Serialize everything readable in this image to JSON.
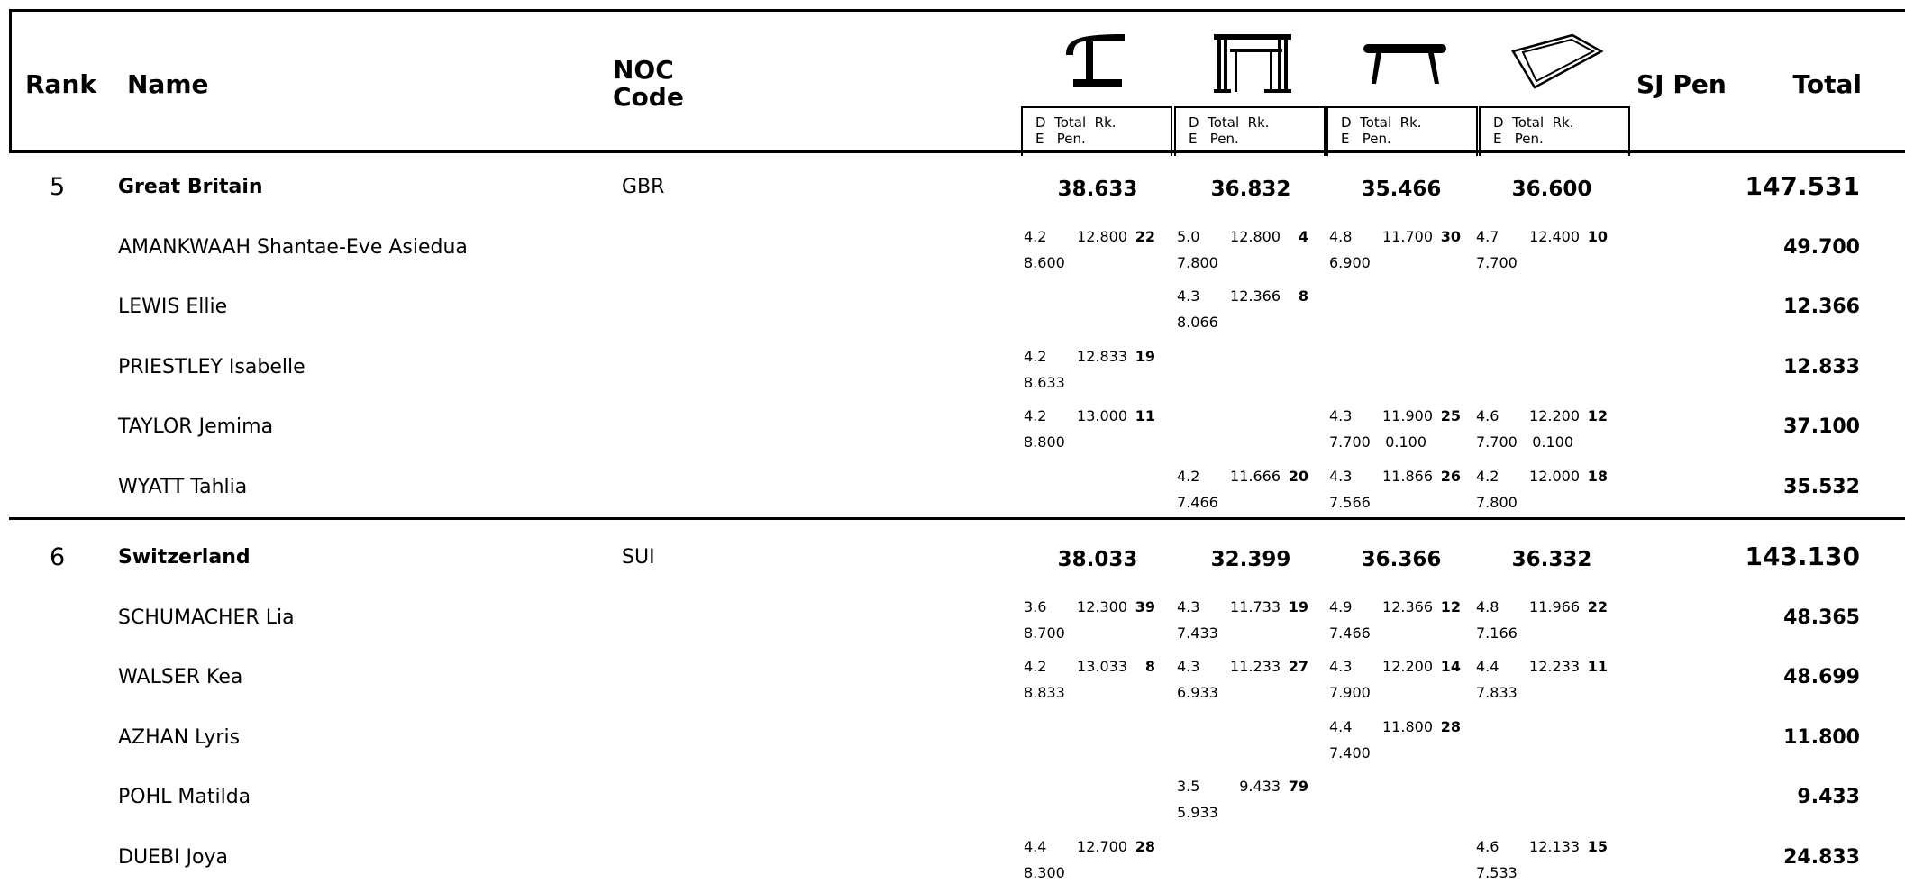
{
  "header": {
    "rank": "Rank",
    "name": "Name",
    "noc_line1": "NOC",
    "noc_line2": "Code",
    "sj_pen": "SJ Pen",
    "total": "Total",
    "apparatus_icons": [
      "vault-icon",
      "uneven-bars-icon",
      "balance-beam-icon",
      "floor-exercise-icon"
    ],
    "sub_line1": "D  Total  Rk.",
    "sub_line2": "E   Pen."
  },
  "teams": [
    {
      "rank": "5",
      "name": "Great Britain",
      "noc": "GBR",
      "app_totals": [
        "38.633",
        "36.832",
        "35.466",
        "36.600"
      ],
      "total": "147.531",
      "athletes": [
        {
          "name": "AMANKWAAH Shantae-Eve Asiedua",
          "total": "49.700",
          "scores": [
            {
              "d": "4.2",
              "e": "8.600",
              "tot": "12.800",
              "rk": "22",
              "pen": ""
            },
            {
              "d": "5.0",
              "e": "7.800",
              "tot": "12.800",
              "rk": "4",
              "pen": ""
            },
            {
              "d": "4.8",
              "e": "6.900",
              "tot": "11.700",
              "rk": "30",
              "pen": ""
            },
            {
              "d": "4.7",
              "e": "7.700",
              "tot": "12.400",
              "rk": "10",
              "pen": ""
            }
          ]
        },
        {
          "name": "LEWIS Ellie",
          "total": "12.366",
          "scores": [
            null,
            {
              "d": "4.3",
              "e": "8.066",
              "tot": "12.366",
              "rk": "8",
              "pen": ""
            },
            null,
            null
          ]
        },
        {
          "name": "PRIESTLEY Isabelle",
          "total": "12.833",
          "scores": [
            {
              "d": "4.2",
              "e": "8.633",
              "tot": "12.833",
              "rk": "19",
              "pen": ""
            },
            null,
            null,
            null
          ]
        },
        {
          "name": "TAYLOR Jemima",
          "total": "37.100",
          "scores": [
            {
              "d": "4.2",
              "e": "8.800",
              "tot": "13.000",
              "rk": "11",
              "pen": ""
            },
            null,
            {
              "d": "4.3",
              "e": "7.700",
              "tot": "11.900",
              "rk": "25",
              "pen": "0.100"
            },
            {
              "d": "4.6",
              "e": "7.700",
              "tot": "12.200",
              "rk": "12",
              "pen": "0.100"
            }
          ]
        },
        {
          "name": "WYATT Tahlia",
          "total": "35.532",
          "scores": [
            null,
            {
              "d": "4.2",
              "e": "7.466",
              "tot": "11.666",
              "rk": "20",
              "pen": ""
            },
            {
              "d": "4.3",
              "e": "7.566",
              "tot": "11.866",
              "rk": "26",
              "pen": ""
            },
            {
              "d": "4.2",
              "e": "7.800",
              "tot": "12.000",
              "rk": "18",
              "pen": ""
            }
          ]
        }
      ]
    },
    {
      "rank": "6",
      "name": "Switzerland",
      "noc": "SUI",
      "app_totals": [
        "38.033",
        "32.399",
        "36.366",
        "36.332"
      ],
      "total": "143.130",
      "athletes": [
        {
          "name": "SCHUMACHER Lia",
          "total": "48.365",
          "scores": [
            {
              "d": "3.6",
              "e": "8.700",
              "tot": "12.300",
              "rk": "39",
              "pen": ""
            },
            {
              "d": "4.3",
              "e": "7.433",
              "tot": "11.733",
              "rk": "19",
              "pen": ""
            },
            {
              "d": "4.9",
              "e": "7.466",
              "tot": "12.366",
              "rk": "12",
              "pen": ""
            },
            {
              "d": "4.8",
              "e": "7.166",
              "tot": "11.966",
              "rk": "22",
              "pen": ""
            }
          ]
        },
        {
          "name": "WALSER Kea",
          "total": "48.699",
          "scores": [
            {
              "d": "4.2",
              "e": "8.833",
              "tot": "13.033",
              "rk": "8",
              "pen": ""
            },
            {
              "d": "4.3",
              "e": "6.933",
              "tot": "11.233",
              "rk": "27",
              "pen": ""
            },
            {
              "d": "4.3",
              "e": "7.900",
              "tot": "12.200",
              "rk": "14",
              "pen": ""
            },
            {
              "d": "4.4",
              "e": "7.833",
              "tot": "12.233",
              "rk": "11",
              "pen": ""
            }
          ]
        },
        {
          "name": "AZHAN Lyris",
          "total": "11.800",
          "scores": [
            null,
            null,
            {
              "d": "4.4",
              "e": "7.400",
              "tot": "11.800",
              "rk": "28",
              "pen": ""
            },
            null
          ]
        },
        {
          "name": "POHL Matilda",
          "total": "9.433",
          "scores": [
            null,
            {
              "d": "3.5",
              "e": "5.933",
              "tot": "9.433",
              "rk": "79",
              "pen": ""
            },
            null,
            null
          ]
        },
        {
          "name": "DUEBI Joya",
          "total": "24.833",
          "scores": [
            {
              "d": "4.4",
              "e": "8.300",
              "tot": "12.700",
              "rk": "28",
              "pen": ""
            },
            null,
            null,
            {
              "d": "4.6",
              "e": "7.533",
              "tot": "12.133",
              "rk": "15",
              "pen": ""
            }
          ]
        }
      ]
    }
  ]
}
